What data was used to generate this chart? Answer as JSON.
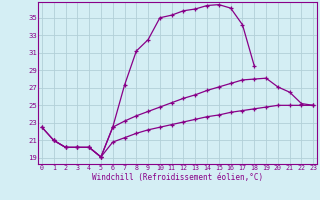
{
  "xlabel": "Windchill (Refroidissement éolien,°C)",
  "background_color": "#d4eef4",
  "grid_color": "#b2d0d8",
  "line_color": "#880088",
  "x_ticks": [
    0,
    1,
    2,
    3,
    4,
    5,
    6,
    7,
    8,
    9,
    10,
    11,
    12,
    13,
    14,
    15,
    16,
    17,
    18,
    19,
    20,
    21,
    22,
    23
  ],
  "y_ticks": [
    19,
    21,
    23,
    25,
    27,
    29,
    31,
    33,
    35
  ],
  "xlim": [
    -0.3,
    23.3
  ],
  "ylim": [
    18.3,
    36.8
  ],
  "line1_x": [
    0,
    1,
    2,
    3,
    4,
    5,
    6,
    7,
    8,
    9,
    10,
    11,
    12,
    13,
    14,
    15,
    16,
    17,
    18
  ],
  "line1_y": [
    22.5,
    21.0,
    20.2,
    20.2,
    20.2,
    19.1,
    22.5,
    27.3,
    31.2,
    32.5,
    35.0,
    35.3,
    35.8,
    36.0,
    36.4,
    36.5,
    36.1,
    34.2,
    29.5
  ],
  "line2_x": [
    0,
    1,
    2,
    3,
    4,
    5,
    6,
    7,
    8,
    9,
    10,
    11,
    12,
    13,
    14,
    15,
    16,
    17,
    18,
    19,
    20,
    21,
    22,
    23
  ],
  "line2_y": [
    22.5,
    21.0,
    20.2,
    20.2,
    20.2,
    19.1,
    22.5,
    23.2,
    23.8,
    24.3,
    24.8,
    25.3,
    25.8,
    26.2,
    26.7,
    27.1,
    27.5,
    27.9,
    28.0,
    28.1,
    27.1,
    26.5,
    25.2,
    25.0
  ],
  "line3_x": [
    1,
    2,
    3,
    4,
    5,
    6,
    7,
    8,
    9,
    10,
    11,
    12,
    13,
    14,
    15,
    16,
    17,
    18,
    19,
    20,
    21,
    22,
    23
  ],
  "line3_y": [
    21.0,
    20.2,
    20.2,
    20.2,
    19.1,
    20.8,
    21.3,
    21.8,
    22.2,
    22.5,
    22.8,
    23.1,
    23.4,
    23.7,
    23.9,
    24.2,
    24.4,
    24.6,
    24.8,
    25.0,
    25.0,
    25.0,
    25.0
  ]
}
